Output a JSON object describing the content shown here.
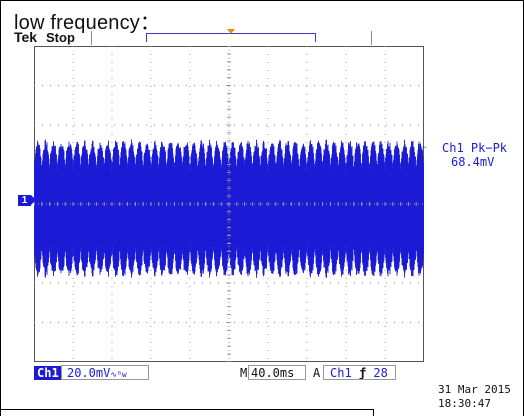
{
  "caption": "low frequency：",
  "header": {
    "brand": "Tek",
    "run_state": "Stop"
  },
  "channel_marker": "1",
  "measurement": {
    "label": "Ch1 Pk−Pk",
    "value": "68.4mV",
    "arrow": "←"
  },
  "status_bar": {
    "channel": "Ch1",
    "volts_per_div": "20.0mV",
    "volts_icons": "∿ᴮw",
    "m_label": "M",
    "timebase": "40.0ms",
    "a_label": "A",
    "trigger_channel": "Ch1",
    "trigger_slope": "ƒ",
    "trigger_level": "28"
  },
  "datetime": {
    "date": "31 Mar 2015",
    "time": "18:30:47"
  },
  "colors": {
    "trace": "#1b1bd6",
    "grid": "#9a9a9a",
    "trigger": "#e88a1a"
  },
  "waveform": {
    "bursts": 50,
    "peak_pk_pk_mV": 68.4,
    "volts_per_div_mV": 20.0
  }
}
